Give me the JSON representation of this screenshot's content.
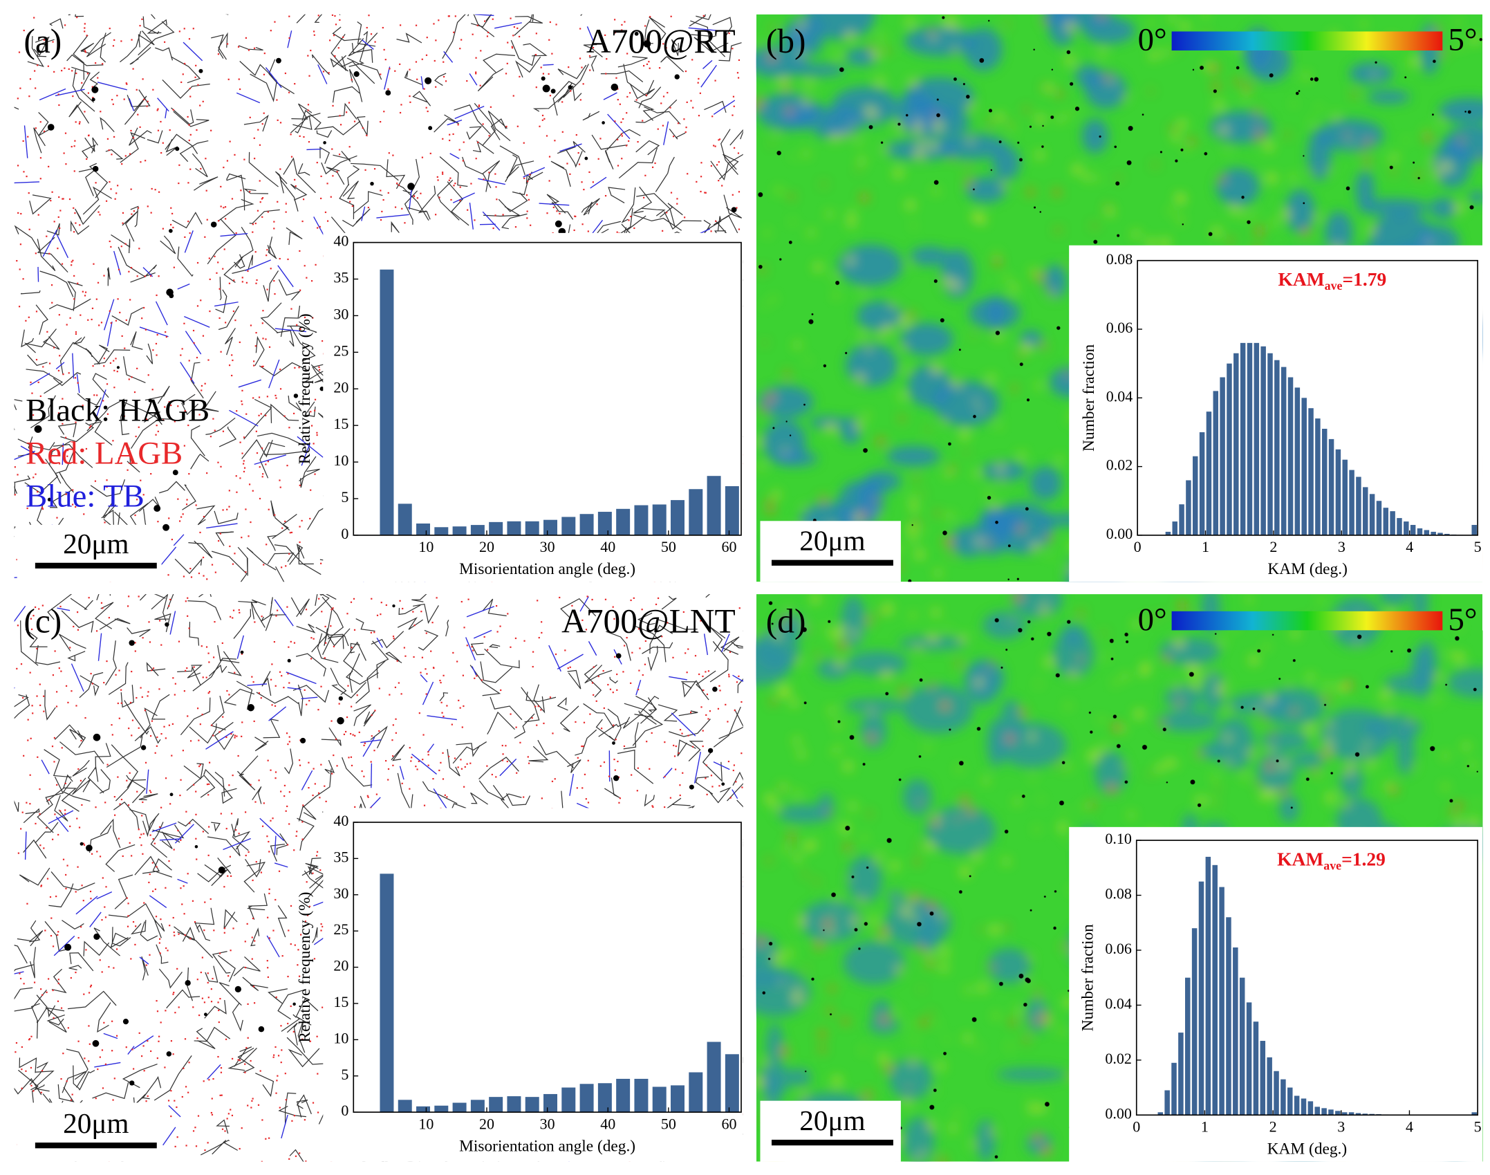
{
  "panels": [
    {
      "label": "(a)",
      "sample": "A700@RT",
      "legend": [
        "Black: HAGB",
        "Red: LAGB",
        "Blue: TB"
      ],
      "scale_bar": "20μm"
    },
    {
      "label": "(b)",
      "colorbar": [
        "0°",
        "5°"
      ],
      "scale_bar": "20μm",
      "annotation": {
        "main": "KAM",
        "sub": "ave",
        "rest": "=1.79"
      }
    },
    {
      "label": "(c)",
      "sample": "A700@LNT",
      "scale_bar": "20μm"
    },
    {
      "label": "(d)",
      "colorbar": [
        "0°",
        "5°"
      ],
      "scale_bar": "20μm",
      "annotation": {
        "main": "KAM",
        "sub": "ave",
        "rest": "=1.29"
      }
    }
  ],
  "chart_data": [
    {
      "type": "histogram",
      "color": "#3d6494",
      "x_label": "Misorientation angle (deg.)",
      "y_label": "Relative frequency (%)",
      "bins": [
        2,
        5,
        8,
        11,
        14,
        17,
        20,
        23,
        26,
        29,
        32,
        35,
        38,
        41,
        44,
        47,
        50,
        53,
        56,
        59,
        62
      ],
      "values": [
        36.3,
        4.3,
        1.6,
        1.1,
        1.2,
        1.4,
        1.8,
        1.9,
        1.9,
        2.1,
        2.5,
        2.9,
        3.2,
        3.6,
        4.1,
        4.2,
        4.8,
        6.3,
        8.1,
        6.7
      ],
      "xlim": [
        -2,
        62
      ],
      "xticks": [
        10,
        20,
        30,
        40,
        50,
        60
      ],
      "ylim": [
        0,
        40
      ],
      "yticks": [
        0,
        5,
        10,
        15,
        20,
        25,
        30,
        35,
        40
      ]
    },
    {
      "type": "histogram",
      "color": "#3d6494",
      "x_label": "KAM (deg.)",
      "y_label": "Number fraction",
      "bins": [
        0.4,
        0.5,
        0.6,
        0.7,
        0.8,
        0.9,
        1.0,
        1.1,
        1.2,
        1.3,
        1.4,
        1.5,
        1.6,
        1.7,
        1.8,
        1.9,
        2.0,
        2.1,
        2.2,
        2.3,
        2.4,
        2.5,
        2.6,
        2.7,
        2.8,
        2.9,
        3.0,
        3.1,
        3.2,
        3.3,
        3.4,
        3.5,
        3.6,
        3.7,
        3.8,
        3.9,
        4.0,
        4.1,
        4.2,
        4.3,
        4.4,
        4.5,
        4.6,
        4.7,
        4.8,
        4.9,
        5.0
      ],
      "values": [
        0.001,
        0.004,
        0.009,
        0.016,
        0.023,
        0.03,
        0.036,
        0.042,
        0.046,
        0.05,
        0.053,
        0.056,
        0.056,
        0.056,
        0.055,
        0.053,
        0.051,
        0.049,
        0.046,
        0.043,
        0.04,
        0.037,
        0.034,
        0.031,
        0.028,
        0.025,
        0.022,
        0.019,
        0.017,
        0.014,
        0.012,
        0.01,
        0.008,
        0.007,
        0.005,
        0.004,
        0.003,
        0.002,
        0.0015,
        0.001,
        0.0007,
        0.0004,
        0.0002,
        0.0001,
        0,
        0.003
      ],
      "xlim": [
        0,
        5
      ],
      "xticks": [
        0,
        1,
        2,
        3,
        4,
        5
      ],
      "ylim": [
        0,
        0.08
      ],
      "yticks": [
        {
          "value": 0,
          "label": "0.00"
        },
        {
          "value": 0.02,
          "label": "0.02"
        },
        {
          "value": 0.04,
          "label": "0.04"
        },
        {
          "value": 0.06,
          "label": "0.06"
        },
        {
          "value": 0.08,
          "label": "0.08"
        }
      ]
    },
    {
      "type": "histogram",
      "color": "#3d6494",
      "x_label": "Misorientation angle (deg.)",
      "y_label": "Relative frequency (%)",
      "bins": [
        2,
        5,
        8,
        11,
        14,
        17,
        20,
        23,
        26,
        29,
        32,
        35,
        38,
        41,
        44,
        47,
        50,
        53,
        56,
        59,
        62
      ],
      "values": [
        32.9,
        1.7,
        0.8,
        0.9,
        1.3,
        1.7,
        2.1,
        2.2,
        2.1,
        2.5,
        3.4,
        3.9,
        4.0,
        4.6,
        4.6,
        3.5,
        3.7,
        5.5,
        9.7,
        8.0
      ],
      "xlim": [
        -2,
        62
      ],
      "xticks": [
        10,
        20,
        30,
        40,
        50,
        60
      ],
      "ylim": [
        0,
        40
      ],
      "yticks": [
        0,
        5,
        10,
        15,
        20,
        25,
        30,
        35,
        40
      ]
    },
    {
      "type": "histogram",
      "color": "#3d6494",
      "x_label": "KAM (deg.)",
      "y_label": "Number fraction",
      "bins": [
        0.3,
        0.4,
        0.5,
        0.6,
        0.7,
        0.8,
        0.9,
        1.0,
        1.1,
        1.2,
        1.3,
        1.4,
        1.5,
        1.6,
        1.7,
        1.8,
        1.9,
        2.0,
        2.1,
        2.2,
        2.3,
        2.4,
        2.5,
        2.6,
        2.7,
        2.8,
        2.9,
        3.0,
        3.1,
        3.2,
        3.3,
        3.4,
        3.5,
        3.6,
        3.7,
        3.8,
        3.9,
        4.0,
        4.1,
        4.2,
        4.3,
        4.4,
        4.5,
        4.6,
        4.7,
        4.8,
        4.9,
        5.0
      ],
      "values": [
        0.001,
        0.009,
        0.019,
        0.03,
        0.05,
        0.068,
        0.085,
        0.094,
        0.091,
        0.083,
        0.072,
        0.061,
        0.05,
        0.041,
        0.034,
        0.027,
        0.021,
        0.016,
        0.013,
        0.01,
        0.007,
        0.006,
        0.005,
        0.003,
        0.0025,
        0.002,
        0.0015,
        0.001,
        0.001,
        0.0007,
        0.0005,
        0.0004,
        0.0003,
        0.0002,
        0.0001,
        0,
        0,
        0,
        0,
        0,
        0,
        0,
        0,
        0,
        0,
        0,
        0.001
      ],
      "xlim": [
        0,
        5
      ],
      "xticks": [
        0,
        1,
        2,
        3,
        4,
        5
      ],
      "ylim": [
        0,
        0.1
      ],
      "yticks": [
        {
          "value": 0,
          "label": "0.00"
        },
        {
          "value": 0.02,
          "label": "0.02"
        },
        {
          "value": 0.04,
          "label": "0.04"
        },
        {
          "value": 0.06,
          "label": "0.06"
        },
        {
          "value": 0.08,
          "label": "0.08"
        },
        {
          "value": 0.1,
          "label": "0.10"
        }
      ]
    }
  ]
}
